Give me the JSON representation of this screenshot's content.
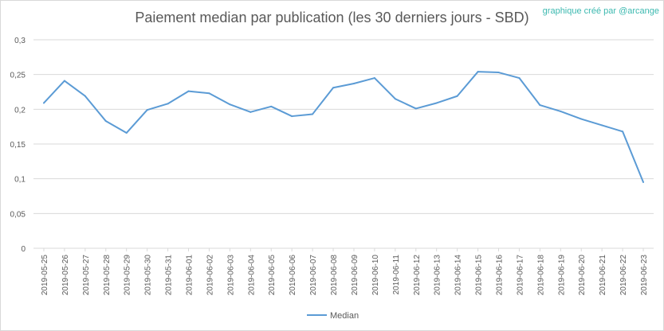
{
  "chart_data": {
    "type": "line",
    "title": "Paiement median par publication (les 30 derniers jours - SBD)",
    "credit": "graphique créé par @arcange",
    "ylim": [
      0,
      0.3
    ],
    "yticks": [
      "0",
      "0,05",
      "0,1",
      "0,15",
      "0,2",
      "0,25",
      "0,3"
    ],
    "ytick_values": [
      0,
      0.05,
      0.1,
      0.15,
      0.2,
      0.25,
      0.3
    ],
    "grid": "horizontal",
    "legend": "bottom",
    "categories": [
      "2019-05-25",
      "2019-05-26",
      "2019-05-27",
      "2019-05-28",
      "2019-05-29",
      "2019-05-30",
      "2019-05-31",
      "2019-06-01",
      "2019-06-02",
      "2019-06-03",
      "2019-06-04",
      "2019-06-05",
      "2019-06-06",
      "2019-06-07",
      "2019-06-08",
      "2019-06-09",
      "2019-06-10",
      "2019-06-11",
      "2019-06-12",
      "2019-06-13",
      "2019-06-14",
      "2019-06-15",
      "2019-06-16",
      "2019-06-17",
      "2019-06-18",
      "2019-06-19",
      "2019-06-20",
      "2019-06-21",
      "2019-06-22",
      "2019-06-23"
    ],
    "series": [
      {
        "name": "Median",
        "color": "#5b9bd5",
        "values": [
          0.209,
          0.241,
          0.219,
          0.183,
          0.166,
          0.199,
          0.208,
          0.226,
          0.223,
          0.207,
          0.196,
          0.204,
          0.19,
          0.193,
          0.231,
          0.237,
          0.245,
          0.215,
          0.201,
          0.209,
          0.219,
          0.254,
          0.253,
          0.245,
          0.206,
          0.197,
          0.186,
          0.177,
          0.168,
          0.095
        ]
      }
    ]
  }
}
